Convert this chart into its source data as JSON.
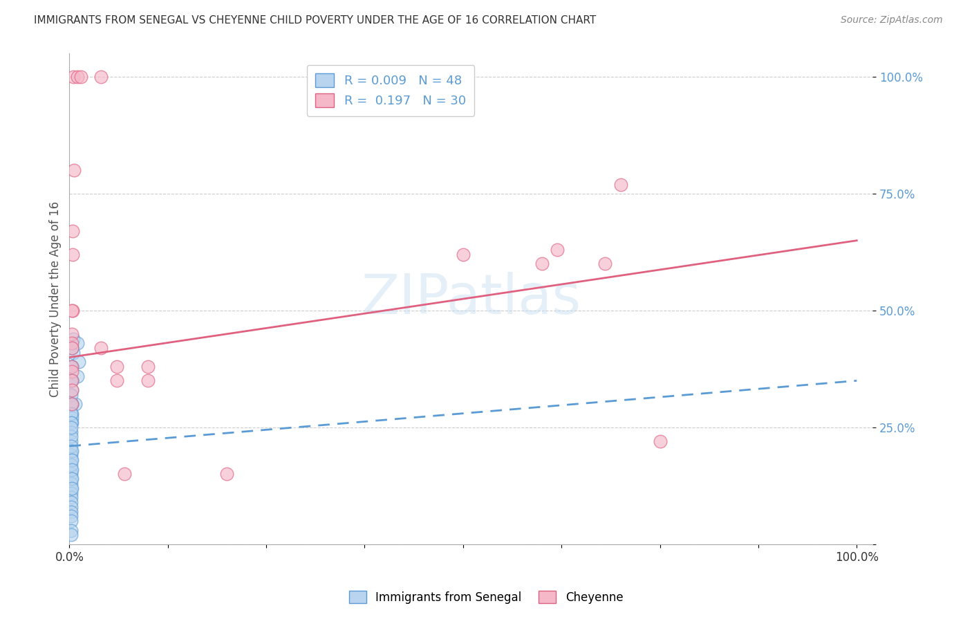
{
  "title": "IMMIGRANTS FROM SENEGAL VS CHEYENNE CHILD POVERTY UNDER THE AGE OF 16 CORRELATION CHART",
  "source": "Source: ZipAtlas.com",
  "ylabel": "Child Poverty Under the Age of 16",
  "legend_label1": "Immigrants from Senegal",
  "legend_label2": "Cheyenne",
  "legend_r1": "R = 0.009",
  "legend_n1": "N = 48",
  "legend_r2": "R =  0.197",
  "legend_n2": "N = 30",
  "watermark": "ZIPatlas",
  "blue_fill": "#b8d4ee",
  "blue_edge": "#5b9bd5",
  "pink_fill": "#f5b8c8",
  "pink_edge": "#e06080",
  "blue_line_color": "#5b9bd5",
  "pink_line_color": "#e06080",
  "blue_scatter": [
    [
      0.005,
      0.44
    ],
    [
      0.005,
      0.41
    ],
    [
      0.01,
      0.43
    ],
    [
      0.012,
      0.39
    ],
    [
      0.01,
      0.36
    ],
    [
      0.008,
      0.3
    ],
    [
      0.003,
      0.42
    ],
    [
      0.003,
      0.38
    ],
    [
      0.003,
      0.35
    ],
    [
      0.003,
      0.33
    ],
    [
      0.003,
      0.3
    ],
    [
      0.003,
      0.28
    ],
    [
      0.003,
      0.27
    ],
    [
      0.003,
      0.26
    ],
    [
      0.002,
      0.38
    ],
    [
      0.002,
      0.35
    ],
    [
      0.002,
      0.32
    ],
    [
      0.002,
      0.3
    ],
    [
      0.002,
      0.28
    ],
    [
      0.002,
      0.26
    ],
    [
      0.002,
      0.24
    ],
    [
      0.002,
      0.22
    ],
    [
      0.002,
      0.2
    ],
    [
      0.002,
      0.19
    ],
    [
      0.002,
      0.18
    ],
    [
      0.002,
      0.16
    ],
    [
      0.002,
      0.15
    ],
    [
      0.002,
      0.14
    ],
    [
      0.002,
      0.13
    ],
    [
      0.002,
      0.12
    ],
    [
      0.002,
      0.11
    ],
    [
      0.002,
      0.1
    ],
    [
      0.002,
      0.09
    ],
    [
      0.002,
      0.08
    ],
    [
      0.002,
      0.07
    ],
    [
      0.002,
      0.06
    ],
    [
      0.002,
      0.23
    ],
    [
      0.002,
      0.05
    ],
    [
      0.002,
      0.03
    ],
    [
      0.002,
      0.17
    ],
    [
      0.002,
      0.21
    ],
    [
      0.002,
      0.25
    ],
    [
      0.003,
      0.2
    ],
    [
      0.003,
      0.18
    ],
    [
      0.003,
      0.16
    ],
    [
      0.003,
      0.14
    ],
    [
      0.003,
      0.12
    ],
    [
      0.002,
      0.02
    ]
  ],
  "pink_scatter": [
    [
      0.005,
      1.0
    ],
    [
      0.01,
      1.0
    ],
    [
      0.015,
      1.0
    ],
    [
      0.04,
      1.0
    ],
    [
      0.006,
      0.8
    ],
    [
      0.004,
      0.67
    ],
    [
      0.004,
      0.62
    ],
    [
      0.004,
      0.5
    ],
    [
      0.003,
      0.5
    ],
    [
      0.003,
      0.45
    ],
    [
      0.04,
      0.42
    ],
    [
      0.06,
      0.38
    ],
    [
      0.1,
      0.35
    ],
    [
      0.1,
      0.38
    ],
    [
      0.003,
      0.43
    ],
    [
      0.003,
      0.42
    ],
    [
      0.003,
      0.38
    ],
    [
      0.003,
      0.37
    ],
    [
      0.003,
      0.35
    ],
    [
      0.003,
      0.33
    ],
    [
      0.003,
      0.3
    ],
    [
      0.06,
      0.35
    ],
    [
      0.5,
      0.62
    ],
    [
      0.6,
      0.6
    ],
    [
      0.7,
      0.77
    ],
    [
      0.75,
      0.22
    ],
    [
      0.62,
      0.63
    ],
    [
      0.68,
      0.6
    ],
    [
      0.2,
      0.15
    ],
    [
      0.07,
      0.15
    ]
  ],
  "ylim": [
    0.0,
    1.05
  ],
  "xlim": [
    0.0,
    1.02
  ],
  "yticks": [
    0.0,
    0.25,
    0.5,
    0.75,
    1.0
  ],
  "ytick_labels": [
    "",
    "25.0%",
    "50.0%",
    "75.0%",
    "100.0%"
  ],
  "xticks": [
    0.0,
    0.125,
    0.25,
    0.375,
    0.5,
    0.625,
    0.75,
    0.875,
    1.0
  ],
  "xtick_labels": [
    "0.0%",
    "",
    "",
    "",
    "",
    "",
    "",
    "",
    "100.0%"
  ],
  "pink_line_x": [
    0.0,
    1.0
  ],
  "pink_line_y": [
    0.4,
    0.65
  ],
  "blue_line_x": [
    0.0,
    1.0
  ],
  "blue_line_y": [
    0.21,
    0.35
  ]
}
